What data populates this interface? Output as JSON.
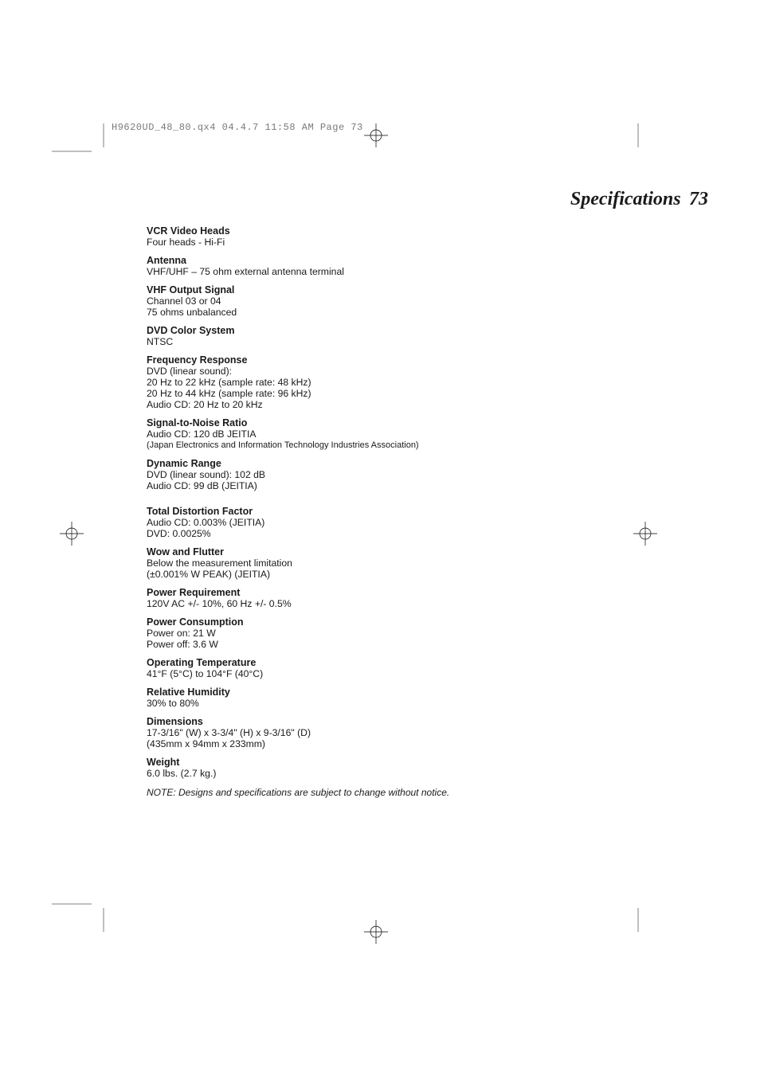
{
  "print": {
    "header_line": "H9620UD_48_80.qx4  04.4.7  11:58 AM  Page 73"
  },
  "page": {
    "title": "Specifications",
    "number": "73"
  },
  "specs": [
    {
      "label": "VCR Video Heads",
      "lines": [
        "Four heads - Hi-Fi"
      ]
    },
    {
      "label": "Antenna",
      "lines": [
        "VHF/UHF – 75 ohm external antenna terminal"
      ]
    },
    {
      "label": "VHF Output Signal",
      "lines": [
        "Channel 03 or 04",
        "75 ohms unbalanced"
      ]
    },
    {
      "label": "DVD Color System",
      "lines": [
        "NTSC"
      ]
    },
    {
      "label": "Frequency Response",
      "lines": [
        "DVD (linear sound):",
        "20 Hz to 22 kHz (sample rate: 48 kHz)",
        "20 Hz to 44 kHz (sample rate: 96 kHz)",
        "Audio CD: 20 Hz to 20 kHz"
      ]
    },
    {
      "label": "Signal-to-Noise Ratio",
      "lines": [
        "Audio CD: 120 dB JEITIA"
      ],
      "sublines": [
        "(Japan Electronics and Information Technology Industries Association)"
      ]
    },
    {
      "label": "Dynamic Range",
      "lines": [
        "DVD (linear sound): 102 dB",
        "Audio CD: 99 dB (JEITIA)"
      ]
    },
    {
      "label": "Total Distortion Factor",
      "lines": [
        "Audio CD: 0.003% (JEITIA)",
        "DVD: 0.0025%"
      ],
      "gap_before": true
    },
    {
      "label": "Wow and Flutter",
      "lines": [
        "Below the measurement limitation",
        "(±0.001% W PEAK) (JEITIA)"
      ]
    },
    {
      "label": "Power Requirement",
      "lines": [
        "120V AC +/- 10%, 60 Hz +/- 0.5%"
      ]
    },
    {
      "label": "Power Consumption",
      "lines": [
        "Power on: 21 W",
        "Power off: 3.6 W"
      ]
    },
    {
      "label": "Operating Temperature",
      "lines": [
        "41°F (5°C) to 104°F (40°C)"
      ]
    },
    {
      "label": "Relative Humidity",
      "lines": [
        "30% to 80%"
      ]
    },
    {
      "label": "Dimensions",
      "lines": [
        "17-3/16\" (W) x 3-3/4\" (H) x 9-3/16\" (D)",
        "(435mm x 94mm x 233mm)"
      ]
    },
    {
      "label": "Weight",
      "lines": [
        "6.0 lbs. (2.7 kg.)"
      ]
    }
  ],
  "note": "NOTE: Designs and specifications are subject to change without notice.",
  "marks": {
    "crop_color": "#000000",
    "reg_color": "#000000"
  }
}
